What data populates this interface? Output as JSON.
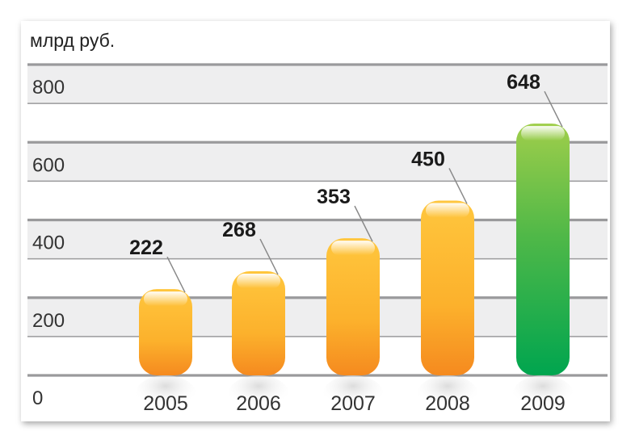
{
  "chart_data": {
    "type": "bar",
    "unit_label": "млрд руб.",
    "categories": [
      "2005",
      "2006",
      "2007",
      "2008",
      "2009"
    ],
    "values": [
      222,
      268,
      353,
      450,
      648
    ],
    "data_labels": [
      "222",
      "268",
      "353",
      "450",
      "648"
    ],
    "yticks": [
      {
        "value": 0,
        "label": "0"
      },
      {
        "value": 200,
        "label": "200"
      },
      {
        "value": 400,
        "label": "400"
      },
      {
        "value": 600,
        "label": "600"
      },
      {
        "value": 800,
        "label": "800"
      }
    ],
    "ylim": [
      0,
      800
    ],
    "bar_colors": [
      "orange",
      "orange",
      "orange",
      "orange",
      "green"
    ],
    "colors": {
      "orange_top": "#ffc63d",
      "orange_bottom": "#f58a1f",
      "green_top": "#9fce4a",
      "green_bottom": "#00a54f",
      "band": "#eeeeef",
      "gridline": "#9a9a9c"
    }
  }
}
